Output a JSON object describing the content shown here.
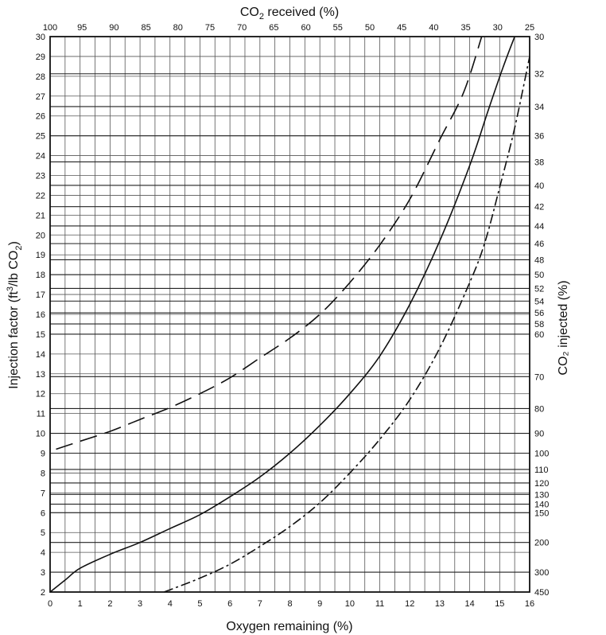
{
  "chart_data": {
    "type": "line",
    "title": "",
    "top_axis": {
      "label_parts": [
        "CO",
        "2",
        " received (%)"
      ],
      "ticks": [
        100,
        95,
        90,
        85,
        80,
        75,
        70,
        65,
        60,
        55,
        50,
        45,
        40,
        35,
        30,
        25
      ]
    },
    "xlabel": "Oxygen remaining (%)",
    "xlim": [
      0,
      16
    ],
    "xticks": [
      0,
      1,
      2,
      3,
      4,
      5,
      6,
      7,
      8,
      9,
      10,
      11,
      12,
      13,
      14,
      15,
      16
    ],
    "ylabel_parts": [
      "Injection factor (ft",
      "3",
      "/lb CO",
      "2",
      ")"
    ],
    "ylim": [
      2,
      30
    ],
    "yticks": [
      2,
      3,
      4,
      5,
      6,
      7,
      8,
      9,
      10,
      11,
      12,
      13,
      14,
      15,
      16,
      17,
      18,
      19,
      20,
      21,
      22,
      23,
      24,
      25,
      26,
      27,
      28,
      29,
      30
    ],
    "right_axis": {
      "label": "CO₂ injected (%)",
      "ticks": [
        30,
        32,
        34,
        36,
        38,
        40,
        42,
        44,
        46,
        48,
        50,
        52,
        54,
        56,
        58,
        60,
        70,
        80,
        90,
        100,
        110,
        120,
        130,
        140,
        150,
        200,
        300,
        450
      ]
    },
    "grid": true,
    "series": [
      {
        "style": "long-dash",
        "x": [
          0.2,
          1,
          2,
          3,
          4,
          5,
          6,
          7,
          8,
          9,
          10,
          11,
          12,
          13,
          13.8,
          14.4
        ],
        "y": [
          9.2,
          9.6,
          10.1,
          10.7,
          11.3,
          12.0,
          12.8,
          13.8,
          14.8,
          16.0,
          17.6,
          19.5,
          21.8,
          24.8,
          27.2,
          30
        ]
      },
      {
        "style": "solid",
        "x": [
          0,
          0.5,
          1,
          2,
          3,
          4,
          5,
          6,
          7,
          8,
          9,
          10,
          11,
          12,
          13,
          14,
          14.6,
          15.1,
          15.5
        ],
        "y": [
          2.0,
          2.6,
          3.2,
          3.9,
          4.5,
          5.2,
          5.9,
          6.8,
          7.8,
          9.0,
          10.4,
          12.0,
          13.9,
          16.5,
          19.7,
          23.5,
          26.2,
          28.4,
          30
        ]
      },
      {
        "style": "dash-dot",
        "x": [
          3.8,
          5,
          6,
          7,
          8,
          9,
          10,
          11,
          12,
          13,
          14,
          14.5,
          15,
          15.5,
          16
        ],
        "y": [
          2.0,
          2.7,
          3.4,
          4.3,
          5.3,
          6.5,
          8.0,
          9.7,
          11.7,
          14.3,
          17.6,
          19.6,
          22.4,
          25.4,
          29.0
        ]
      }
    ]
  }
}
